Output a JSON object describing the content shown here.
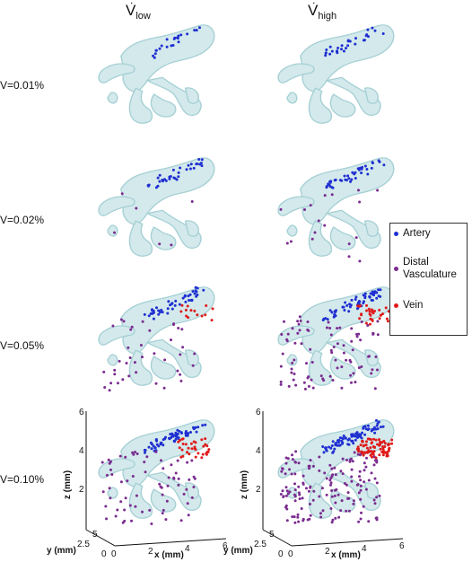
{
  "columns": [
    {
      "symbol": "V",
      "subscript": "low"
    },
    {
      "symbol": "V",
      "subscript": "high"
    }
  ],
  "rows": [
    "V=0.01%",
    "V=0.02%",
    "V=0.05%",
    "V=0.10%"
  ],
  "legend": [
    {
      "label_lines": [
        "Artery"
      ],
      "color": "#1f2fd1"
    },
    {
      "label_lines": [
        "Distal",
        "Vasculature"
      ],
      "color": "#7a2b8f"
    },
    {
      "label_lines": [
        "Vein"
      ],
      "color": "#e01a1a"
    }
  ],
  "axes": {
    "z_label": "z (mm)",
    "y_label": "y (mm)",
    "x_label": "x (mm)",
    "z_ticks": [
      "2",
      "4",
      "6"
    ],
    "y_ticks": [
      "5",
      "2.5",
      "0"
    ],
    "x_ticks": [
      "0",
      "2",
      "4",
      "6"
    ]
  },
  "colors": {
    "vessel_fill": "#cfe7ea",
    "vessel_stroke": "#9ccbd0",
    "artery": "#1f2fd1",
    "distal": "#7a2b8f",
    "vein": "#e01a1a"
  }
}
